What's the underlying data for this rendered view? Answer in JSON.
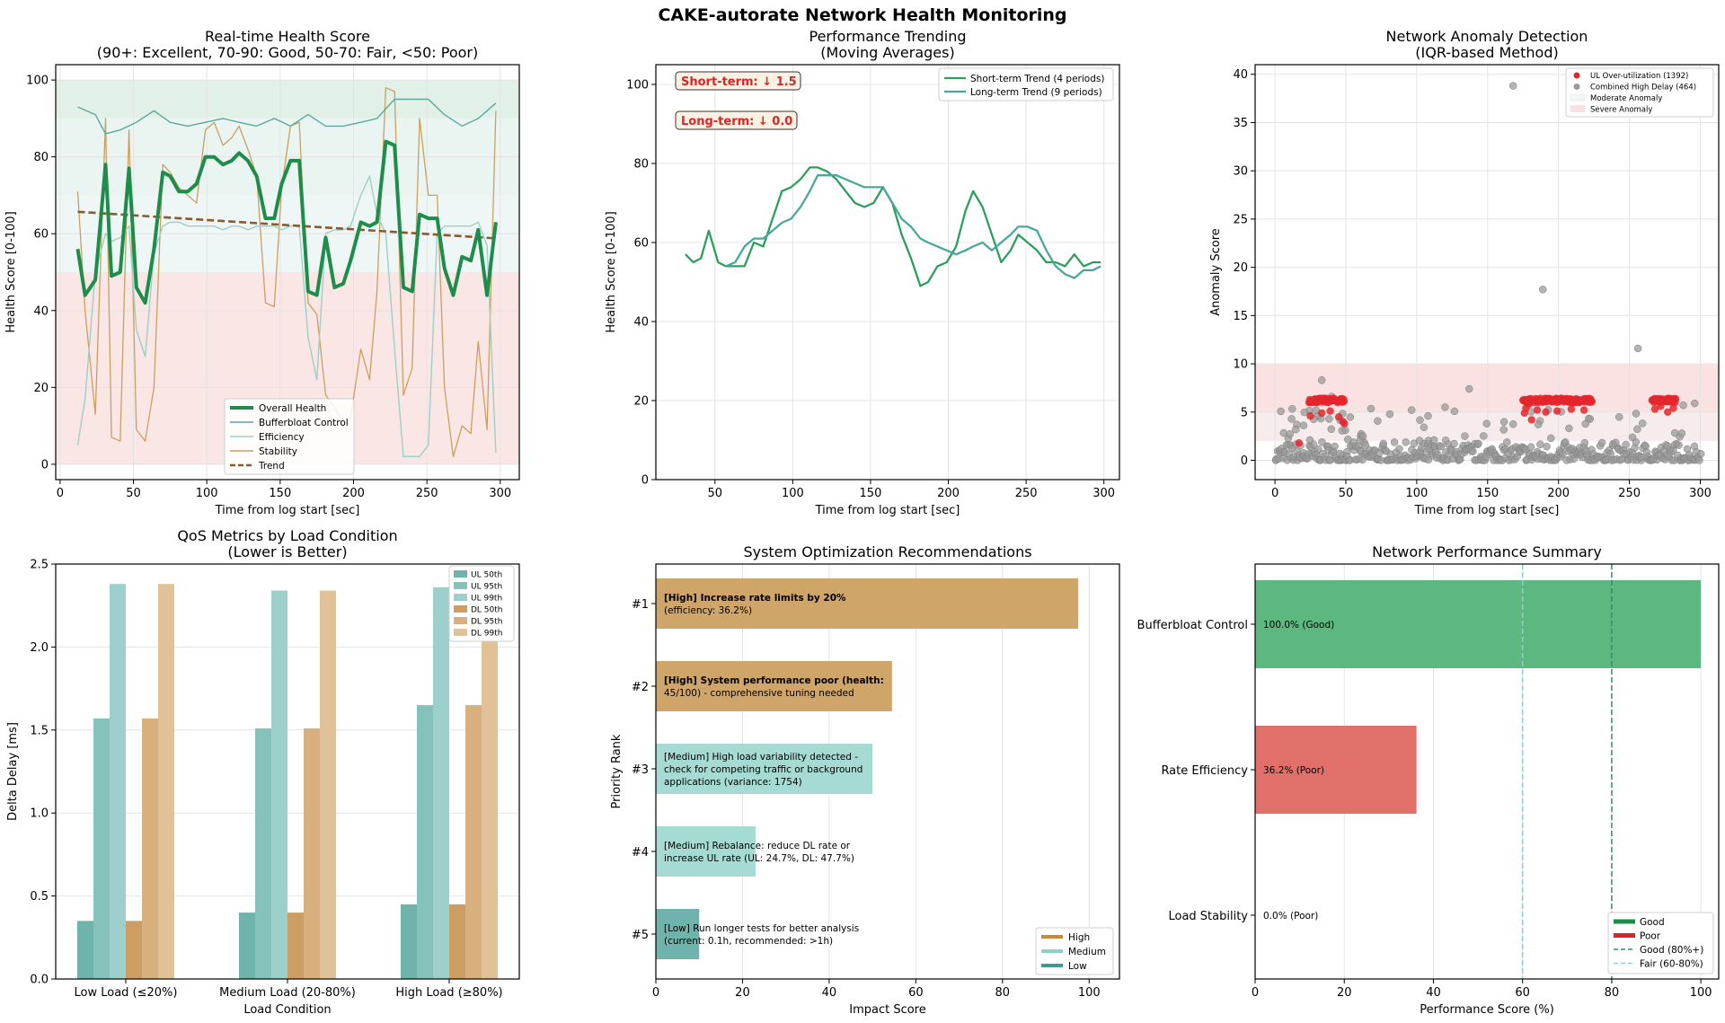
{
  "figure": {
    "title": "CAKE-autorate Network Health Monitoring"
  },
  "colors": {
    "overall": "#1e8c4a",
    "bufferbloat": "#5aa8a0",
    "efficiency": "#9bd0c6",
    "stability": "#c8a060",
    "trend": "#8b5a2b",
    "excellent_band": "#e5f3ea",
    "good_band": "#eef7f5",
    "poor_band": "#fbe4e4",
    "ul": "#6fb3ad",
    "dl": "#cfa168",
    "high": "#c78b3f",
    "medium": "#8fd0c6",
    "low": "#3f9a91",
    "good_bar": "#5cb87e",
    "poor_bar": "#e2706a"
  },
  "chart_data": [
    {
      "id": "health",
      "type": "line",
      "title": "Real-time Health Score",
      "subtitle": "(90+: Excellent, 70-90: Good, 50-70: Fair, <50: Poor)",
      "xlabel": "Time from log start [sec]",
      "ylabel": "Health Score [0-100]",
      "xlim": [
        -3,
        313
      ],
      "ylim": [
        -4,
        104
      ],
      "xticks": [
        0,
        50,
        100,
        150,
        200,
        250,
        300
      ],
      "yticks": [
        0,
        20,
        40,
        60,
        80,
        100
      ],
      "bands": [
        {
          "from": 90,
          "to": 100,
          "color": "#e2f1e7"
        },
        {
          "from": 70,
          "to": 90,
          "color": "#eaf5f1"
        },
        {
          "from": 50,
          "to": 70,
          "color": "#eff7f6"
        },
        {
          "from": 0,
          "to": 50,
          "color": "#fbe6e6"
        }
      ],
      "legend": [
        "Overall Health",
        "Bufferbloat Control",
        "Efficiency",
        "Stability",
        "Trend"
      ],
      "series": [
        {
          "name": "Overall Health",
          "x": [
            12,
            17,
            24,
            31,
            35,
            41,
            47,
            52,
            58,
            64,
            70,
            75,
            81,
            87,
            93,
            99,
            105,
            111,
            117,
            122,
            128,
            134,
            140,
            146,
            151,
            157,
            163,
            169,
            175,
            181,
            187,
            193,
            198,
            205,
            211,
            216,
            222,
            228,
            234,
            240,
            245,
            251,
            257,
            262,
            268,
            274,
            280,
            285,
            291,
            297
          ],
          "y": [
            56,
            44,
            48,
            78,
            49,
            50,
            77,
            46,
            42,
            56,
            76,
            75,
            71,
            71,
            73,
            80,
            80,
            78,
            79,
            81,
            79,
            75,
            64,
            64,
            73,
            79,
            79,
            45,
            44,
            59,
            46,
            47,
            53,
            63,
            62,
            63,
            84,
            83,
            46,
            45,
            65,
            64,
            64,
            51,
            44,
            54,
            53,
            61,
            44,
            63
          ]
        },
        {
          "name": "Bufferbloat Control",
          "x": [
            12,
            24,
            31,
            41,
            52,
            64,
            75,
            87,
            99,
            111,
            122,
            134,
            146,
            157,
            169,
            181,
            193,
            205,
            216,
            228,
            240,
            251,
            262,
            274,
            285,
            297
          ],
          "y": [
            93,
            91,
            86,
            87,
            89,
            92,
            89,
            88,
            89,
            90,
            89,
            88,
            90,
            88,
            91,
            88,
            88,
            89,
            90,
            95,
            95,
            95,
            91,
            88,
            90,
            94
          ]
        },
        {
          "name": "Efficiency",
          "x": [
            12,
            17,
            24,
            31,
            35,
            41,
            47,
            52,
            58,
            64,
            70,
            75,
            81,
            87,
            93,
            99,
            105,
            111,
            117,
            122,
            128,
            134,
            140,
            146,
            151,
            157,
            163,
            169,
            175,
            181,
            187,
            193,
            198,
            205,
            211,
            216,
            222,
            228,
            234,
            240,
            245,
            251,
            257,
            262,
            268,
            274,
            280,
            285,
            291,
            297
          ],
          "y": [
            5,
            17,
            50,
            60,
            58,
            59,
            62,
            35,
            28,
            55,
            62,
            63,
            63,
            62,
            62,
            62,
            62,
            61,
            62,
            62,
            61,
            62,
            62,
            62,
            61,
            62,
            62,
            33,
            22,
            60,
            61,
            61,
            62,
            70,
            75,
            65,
            60,
            30,
            2,
            2,
            2,
            5,
            60,
            62,
            62,
            62,
            62,
            63,
            57,
            3
          ]
        },
        {
          "name": "Stability",
          "x": [
            12,
            17,
            24,
            31,
            35,
            41,
            47,
            52,
            58,
            64,
            70,
            75,
            81,
            87,
            93,
            99,
            105,
            111,
            117,
            122,
            128,
            134,
            140,
            146,
            151,
            157,
            163,
            169,
            175,
            181,
            187,
            193,
            198,
            205,
            211,
            216,
            222,
            228,
            234,
            240,
            245,
            251,
            257,
            262,
            268,
            274,
            280,
            285,
            291,
            297
          ],
          "y": [
            71,
            40,
            13,
            90,
            7,
            6,
            87,
            9,
            6,
            20,
            78,
            76,
            72,
            70,
            68,
            87,
            89,
            83,
            85,
            88,
            82,
            75,
            42,
            41,
            72,
            88,
            89,
            42,
            39,
            18,
            15,
            10,
            12,
            30,
            22,
            45,
            98,
            97,
            18,
            25,
            90,
            70,
            70,
            20,
            2,
            10,
            8,
            32,
            9,
            92
          ]
        },
        {
          "name": "Trend",
          "x": [
            12,
            297
          ],
          "y": [
            65.7,
            58.8
          ]
        }
      ]
    },
    {
      "id": "trending",
      "type": "line",
      "title": "Performance Trending",
      "subtitle": "(Moving Averages)",
      "xlabel": "Time from log start [sec]",
      "ylabel": "Health Score [0-100]",
      "xlim": [
        12,
        310
      ],
      "ylim": [
        0,
        105
      ],
      "xticks": [
        50,
        100,
        150,
        200,
        250,
        300
      ],
      "yticks": [
        0,
        20,
        40,
        60,
        80,
        100
      ],
      "annotations": [
        "Short-term: ↓ 1.5",
        "Long-term: ↓ 0.0"
      ],
      "legend": [
        "Short-term Trend (4 periods)",
        "Long-term Trend (9 periods)"
      ],
      "series": [
        {
          "name": "Short-term Trend (4 periods)",
          "x": [
            31,
            36,
            41,
            46,
            52,
            57,
            63,
            69,
            75,
            81,
            87,
            93,
            99,
            105,
            111,
            116,
            122,
            128,
            134,
            140,
            146,
            152,
            158,
            164,
            170,
            176,
            182,
            187,
            193,
            199,
            205,
            211,
            216,
            222,
            228,
            234,
            240,
            245,
            251,
            257,
            263,
            269,
            275,
            281,
            287,
            293,
            298
          ],
          "y": [
            57,
            55,
            56,
            63,
            55,
            54,
            54,
            54,
            60,
            59,
            66,
            73,
            74,
            76,
            79,
            79,
            78,
            76,
            73,
            70,
            69,
            70,
            74,
            70,
            62,
            56,
            49,
            50,
            54,
            55,
            59,
            68,
            73,
            69,
            62,
            55,
            58,
            62,
            60,
            58,
            55,
            55,
            54,
            57,
            54,
            55,
            55
          ]
        },
        {
          "name": "Long-term Trend (9 periods)",
          "x": [
            57,
            63,
            69,
            75,
            81,
            87,
            93,
            99,
            105,
            111,
            116,
            122,
            128,
            134,
            140,
            146,
            152,
            158,
            164,
            170,
            176,
            182,
            187,
            193,
            199,
            205,
            211,
            216,
            222,
            228,
            234,
            240,
            245,
            251,
            257,
            263,
            269,
            275,
            281,
            287,
            293,
            298
          ],
          "y": [
            54,
            55,
            59,
            61,
            61,
            63,
            65,
            66,
            69,
            73,
            77,
            77,
            77,
            76,
            75,
            74,
            74,
            74,
            70,
            66,
            64,
            61,
            60,
            59,
            58,
            57,
            58,
            59,
            60,
            58,
            60,
            62,
            64,
            64,
            63,
            58,
            54,
            52,
            51,
            53,
            53,
            54
          ]
        }
      ]
    },
    {
      "id": "anomaly",
      "type": "scatter",
      "title": "Network Anomaly Detection",
      "subtitle": "(IQR-based Method)",
      "xlabel": "Time from log start [sec]",
      "ylabel": "Anomaly Score",
      "xlim": [
        -14,
        313
      ],
      "ylim": [
        -2,
        41
      ],
      "xticks": [
        0,
        50,
        100,
        150,
        200,
        250,
        300
      ],
      "yticks": [
        0,
        5,
        10,
        15,
        20,
        25,
        30,
        35,
        40
      ],
      "bands": [
        {
          "name": "Moderate Anomaly",
          "from": 2,
          "to": 5
        },
        {
          "name": "Severe Anomaly",
          "from": 5,
          "to": 10
        }
      ],
      "legend": [
        "UL Over-utilization (1392)",
        "Combined High Delay (464)",
        "Moderate Anomaly",
        "Severe Anomaly"
      ],
      "ul_clusters": [
        {
          "x_from": 24,
          "x_to": 49,
          "y_main": 6.2,
          "tail_x": [
            17,
            25,
            33,
            39,
            45,
            48,
            49
          ],
          "tail_y": [
            1.8,
            4.6,
            4.9,
            5.1,
            4.5,
            4.0,
            3.8
          ]
        },
        {
          "x_from": 175,
          "x_to": 224,
          "y_main": 6.2,
          "tail_x": [
            176,
            177,
            179,
            181,
            185,
            191,
            199,
            209,
            218
          ],
          "tail_y": [
            4.9,
            5.4,
            5.8,
            4.2,
            5.2,
            5.0,
            5.1,
            5.3,
            5.2
          ]
        },
        {
          "x_from": 266,
          "x_to": 283,
          "y_main": 6.2,
          "tail_x": [
            268,
            272,
            277,
            281
          ],
          "tail_y": [
            5.3,
            5.6,
            5.0,
            5.4
          ]
        }
      ],
      "gray_outliers": {
        "x": [
          168,
          189,
          256,
          33,
          137,
          40,
          120,
          108,
          288,
          296
        ],
        "y": [
          38.8,
          17.7,
          11.6,
          8.3,
          7.4,
          6.6,
          5.5,
          4.6,
          5.7,
          5.9
        ]
      }
    },
    {
      "id": "qos",
      "type": "bar",
      "title": "QoS Metrics by Load Condition",
      "subtitle": "(Lower is Better)",
      "xlabel": "Load Condition",
      "ylabel": "Delta Delay [ms]",
      "ylim": [
        0,
        2.5
      ],
      "yticks": [
        0.0,
        0.5,
        1.0,
        1.5,
        2.0,
        2.5
      ],
      "categories": [
        "Low Load (≤20%)",
        "Medium Load (20-80%)",
        "High Load (≥80%)"
      ],
      "legend": [
        "UL 50th",
        "UL 95th",
        "UL 99th",
        "DL 50th",
        "DL 95th",
        "DL 99th"
      ],
      "series": [
        {
          "name": "UL 50th",
          "values": [
            0.35,
            0.4,
            0.45
          ]
        },
        {
          "name": "UL 95th",
          "values": [
            1.57,
            1.51,
            1.65
          ]
        },
        {
          "name": "UL 99th",
          "values": [
            2.38,
            2.34,
            2.36
          ]
        },
        {
          "name": "DL 50th",
          "values": [
            0.35,
            0.4,
            0.45
          ]
        },
        {
          "name": "DL 95th",
          "values": [
            1.57,
            1.51,
            1.65
          ]
        },
        {
          "name": "DL 99th",
          "values": [
            2.38,
            2.34,
            2.36
          ]
        }
      ]
    },
    {
      "id": "recommendations",
      "type": "bar",
      "orientation": "horizontal",
      "title": "System Optimization Recommendations",
      "xlabel": "Impact Score",
      "ylabel": "Priority Rank",
      "xlim": [
        0,
        107
      ],
      "xticks": [
        0,
        20,
        40,
        60,
        80,
        100
      ],
      "categories": [
        "#1",
        "#2",
        "#3",
        "#4",
        "#5"
      ],
      "legend": [
        "High",
        "Medium",
        "Low"
      ],
      "bars": [
        {
          "rank": "#1",
          "value": 97.5,
          "priority": "High",
          "lines": [
            "[High] Increase rate limits by 20%",
            "(efficiency: 36.2%)"
          ],
          "bold_lines": 1
        },
        {
          "rank": "#2",
          "value": 54.5,
          "priority": "High",
          "lines": [
            "[High] System performance poor (health:",
            "45/100) - comprehensive tuning needed"
          ],
          "bold_lines": 1
        },
        {
          "rank": "#3",
          "value": 50,
          "priority": "Medium",
          "lines": [
            "[Medium] High load variability detected -",
            "check for competing traffic or background",
            "applications (variance: 1754)"
          ],
          "bold_lines": 0
        },
        {
          "rank": "#4",
          "value": 23,
          "priority": "Medium",
          "lines": [
            "[Medium] Rebalance: reduce DL rate or",
            "increase UL rate (UL: 24.7%, DL: 47.7%)"
          ],
          "bold_lines": 0
        },
        {
          "rank": "#5",
          "value": 10,
          "priority": "Low",
          "lines": [
            "[Low] Run longer tests for better analysis",
            "(current: 0.1h, recommended: >1h)"
          ],
          "bold_lines": 0
        }
      ]
    },
    {
      "id": "summary",
      "type": "bar",
      "orientation": "horizontal",
      "title": "Network Performance Summary",
      "xlabel": "Performance Score (%)",
      "xlim": [
        0,
        104
      ],
      "xticks": [
        0,
        20,
        40,
        60,
        80,
        100
      ],
      "categories": [
        "Bufferbloat Control",
        "Rate Efficiency",
        "Load Stability"
      ],
      "values": [
        100.0,
        36.2,
        0.0
      ],
      "labels": [
        "100.0% (Good)",
        "36.2% (Poor)",
        "0.0% (Poor)"
      ],
      "status": [
        "Good",
        "Poor",
        "Poor"
      ],
      "thresholds": [
        {
          "name": "Good (80%+)",
          "value": 80
        },
        {
          "name": "Fair (60-80%)",
          "value": 60
        }
      ],
      "legend": [
        "Good",
        "Poor",
        "Good (80%+)",
        "Fair (60-80%)"
      ]
    }
  ]
}
